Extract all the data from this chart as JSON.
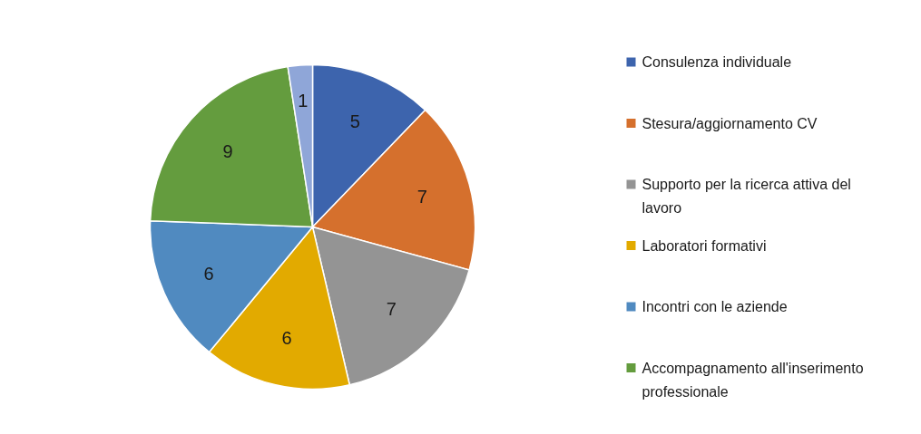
{
  "chart_data": {
    "type": "pie",
    "categories": [
      "Consulenza individuale",
      "Stesura/aggiornamento CV",
      "Supporto per la ricerca attiva del lavoro",
      "Laboratori formativi",
      "Incontri con le aziende",
      "Accompagnamento all'inserimento professionale",
      null
    ],
    "values": [
      5,
      7,
      7,
      6,
      6,
      9,
      1
    ],
    "colors": [
      "#3d64ad",
      "#d5702d",
      "#949494",
      "#e2aa00",
      "#508ac0",
      "#649c3e",
      "#8fa6d8"
    ],
    "data_labels": true,
    "legend": "right"
  }
}
